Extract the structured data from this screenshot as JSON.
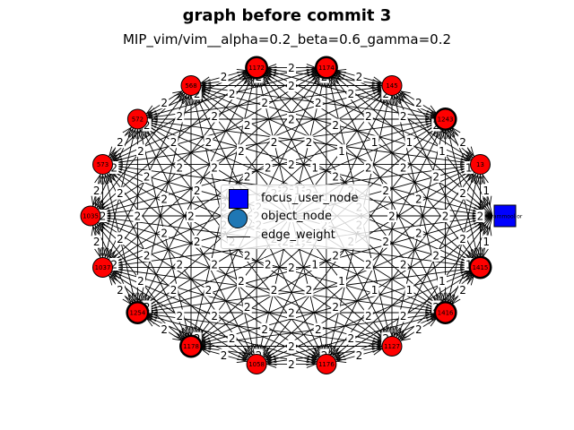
{
  "title": "graph before commit 3",
  "subtitle": "MIP_vim/vim__alpha=0.2_beta=0.6_gamma=0.2",
  "legend": {
    "focus_user_node": "focus_user_node",
    "object_node": "object_node",
    "edge_weight": "edge_weight"
  },
  "colors": {
    "node": "#ff0000",
    "focus": "#0000ff",
    "object": "#1f77b4",
    "edge": "#000000"
  },
  "focus_node": {
    "label": "brammool.or",
    "shape": "square"
  },
  "nodes": [
    {
      "label": "1172",
      "highlighted": true
    },
    {
      "label": "1174",
      "highlighted": true
    },
    {
      "label": "145",
      "highlighted": false
    },
    {
      "label": "1243",
      "highlighted": true
    },
    {
      "label": "13",
      "highlighted": false
    },
    {
      "label": "1415",
      "highlighted": true
    },
    {
      "label": "1416",
      "highlighted": true
    },
    {
      "label": "1127",
      "highlighted": false
    },
    {
      "label": "1176",
      "highlighted": false
    },
    {
      "label": "1058",
      "highlighted": false
    },
    {
      "label": "1178",
      "highlighted": true
    },
    {
      "label": "1254",
      "highlighted": true
    },
    {
      "label": "1037",
      "highlighted": false
    },
    {
      "label": "1035",
      "highlighted": false
    },
    {
      "label": "573",
      "highlighted": false
    },
    {
      "label": "572",
      "highlighted": false
    },
    {
      "label": "568",
      "highlighted": false
    }
  ],
  "edge_labels": [
    "2",
    "1"
  ]
}
